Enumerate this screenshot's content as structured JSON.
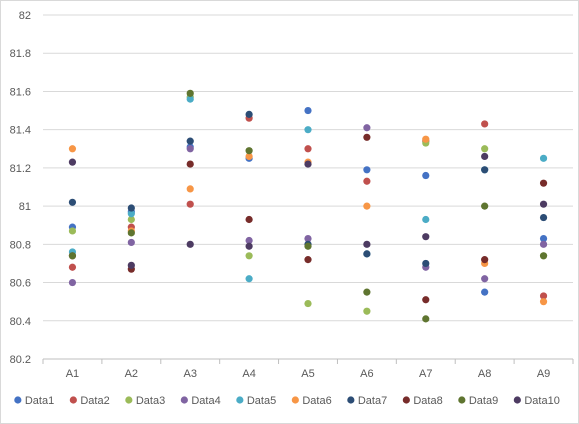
{
  "chart_data": {
    "type": "scatter",
    "title": "",
    "xlabel": "",
    "ylabel": "",
    "categories": [
      "A1",
      "A2",
      "A3",
      "A4",
      "A5",
      "A6",
      "A7",
      "A8",
      "A9"
    ],
    "ylim": [
      80.2,
      82
    ],
    "yticks": [
      "80.2",
      "80.4",
      "80.6",
      "80.8",
      "81",
      "81.2",
      "81.4",
      "81.6",
      "81.8",
      "82"
    ],
    "grid": true,
    "legend": "bottom",
    "series": [
      {
        "name": "Data1",
        "color": "#4472C4",
        "values": [
          80.89,
          80.97,
          81.31,
          81.25,
          81.5,
          81.19,
          81.16,
          80.55,
          80.83
        ]
      },
      {
        "name": "Data2",
        "color": "#C0504D",
        "values": [
          80.68,
          80.89,
          81.01,
          81.46,
          81.3,
          81.13,
          81.34,
          81.43,
          80.53
        ]
      },
      {
        "name": "Data3",
        "color": "#9BBB59",
        "values": [
          80.87,
          80.93,
          81.57,
          80.74,
          80.49,
          80.45,
          81.33,
          81.3,
          80.74
        ]
      },
      {
        "name": "Data4",
        "color": "#8064A2",
        "values": [
          80.6,
          80.81,
          81.3,
          80.82,
          80.83,
          81.41,
          80.68,
          80.62,
          80.8
        ]
      },
      {
        "name": "Data5",
        "color": "#4BACC6",
        "values": [
          80.76,
          80.96,
          81.56,
          80.62,
          81.4,
          80.75,
          80.93,
          81.19,
          81.25
        ]
      },
      {
        "name": "Data6",
        "color": "#F79646",
        "values": [
          81.3,
          80.87,
          81.09,
          81.26,
          81.23,
          81.0,
          81.35,
          80.7,
          80.5
        ]
      },
      {
        "name": "Data7",
        "color": "#2C4D75",
        "values": [
          81.02,
          80.99,
          81.34,
          81.48,
          80.8,
          80.75,
          80.7,
          81.19,
          80.94
        ]
      },
      {
        "name": "Data8",
        "color": "#772C2A",
        "values": [
          80.74,
          80.67,
          81.22,
          80.93,
          80.72,
          81.36,
          80.51,
          80.72,
          81.12
        ]
      },
      {
        "name": "Data9",
        "color": "#5F7530",
        "values": [
          80.74,
          80.86,
          81.59,
          81.29,
          80.79,
          80.55,
          80.41,
          81.0,
          80.74
        ]
      },
      {
        "name": "Data10",
        "color": "#4D3B62",
        "values": [
          81.23,
          80.69,
          80.8,
          80.79,
          81.22,
          80.8,
          80.84,
          81.26,
          81.01
        ]
      }
    ]
  }
}
